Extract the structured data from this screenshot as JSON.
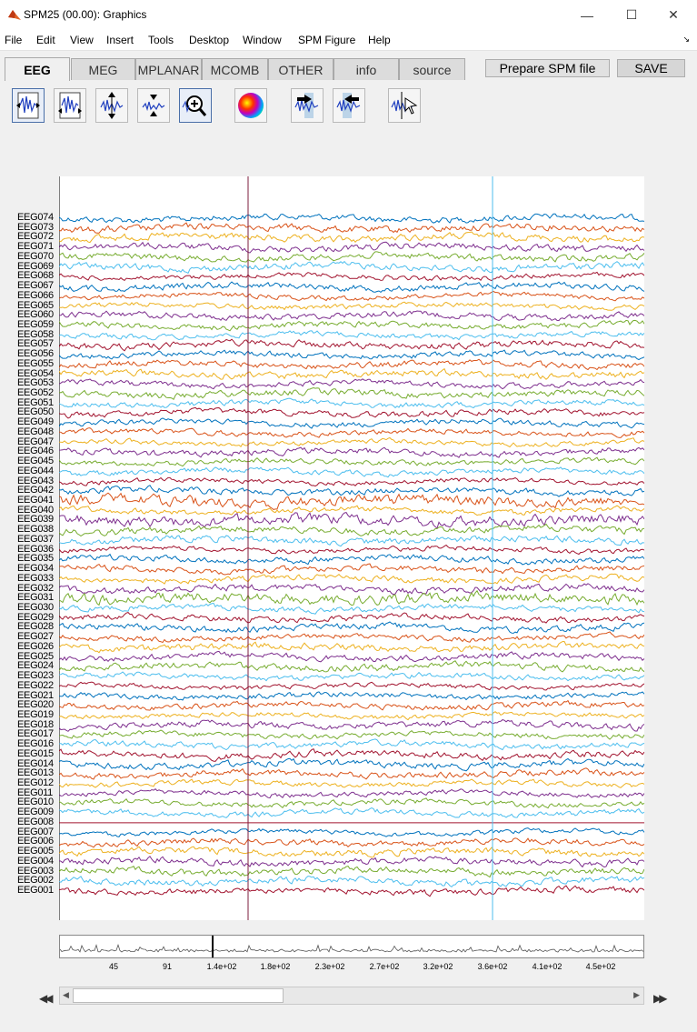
{
  "window": {
    "title": "SPM25 (00.00): Graphics",
    "minimize": "—",
    "maximize": "☐",
    "close": "✕"
  },
  "menu": [
    "File",
    "Edit",
    "View",
    "Insert",
    "Tools",
    "Desktop",
    "Window",
    "SPM Figure",
    "Help"
  ],
  "menu_overflow": "↘",
  "tabs": [
    "EEG",
    "MEG",
    "MPLANAR",
    "MCOMB",
    "OTHER",
    "info",
    "source"
  ],
  "active_tab": "EEG",
  "buttons": {
    "prepare": "Prepare SPM file",
    "save": "SAVE"
  },
  "toolbar_icons": [
    "scale-all-icon",
    "scale-selected-icon",
    "increase-amplitude-icon",
    "decrease-amplitude-icon",
    "zoom-in-icon",
    "topography-icon",
    "scroll-forward-icon",
    "scroll-back-icon",
    "select-event-icon"
  ],
  "channels": [
    "EEG074",
    "EEG073",
    "EEG072",
    "EEG071",
    "EEG070",
    "EEG069",
    "EEG068",
    "EEG067",
    "EEG066",
    "EEG065",
    "EEG060",
    "EEG059",
    "EEG058",
    "EEG057",
    "EEG056",
    "EEG055",
    "EEG054",
    "EEG053",
    "EEG052",
    "EEG051",
    "EEG050",
    "EEG049",
    "EEG048",
    "EEG047",
    "EEG046",
    "EEG045",
    "EEG044",
    "EEG043",
    "EEG042",
    "EEG041",
    "EEG040",
    "EEG039",
    "EEG038",
    "EEG037",
    "EEG036",
    "EEG035",
    "EEG034",
    "EEG033",
    "EEG032",
    "EEG031",
    "EEG030",
    "EEG029",
    "EEG028",
    "EEG027",
    "EEG026",
    "EEG025",
    "EEG024",
    "EEG023",
    "EEG022",
    "EEG021",
    "EEG020",
    "EEG019",
    "EEG018",
    "EEG017",
    "EEG016",
    "EEG015",
    "EEG014",
    "EEG013",
    "EEG012",
    "EEG011",
    "EEG010",
    "EEG009",
    "EEG008",
    "EEG007",
    "EEG006",
    "EEG005",
    "EEG004",
    "EEG003",
    "EEG002",
    "EEG001"
  ],
  "trace_colors": [
    "#0072bd",
    "#d95319",
    "#edb120",
    "#7e2f8e",
    "#77ac30",
    "#4dbeee",
    "#a2142f"
  ],
  "flat_channels": [
    "EEG008"
  ],
  "event_markers": [
    {
      "color": "#7e1e3c"
    },
    {
      "color": "#4dbeee"
    }
  ],
  "overview_ticks": [
    "45",
    "91",
    "1.4e+02",
    "1.8e+02",
    "2.3e+02",
    "2.7e+02",
    "3.2e+02",
    "3.6e+02",
    "4.1e+02",
    "4.5e+02"
  ],
  "scroll_arrows": {
    "left": "◀",
    "right": "▶"
  },
  "nav_buttons": {
    "first": "◀◀",
    "last": "▶▶"
  }
}
